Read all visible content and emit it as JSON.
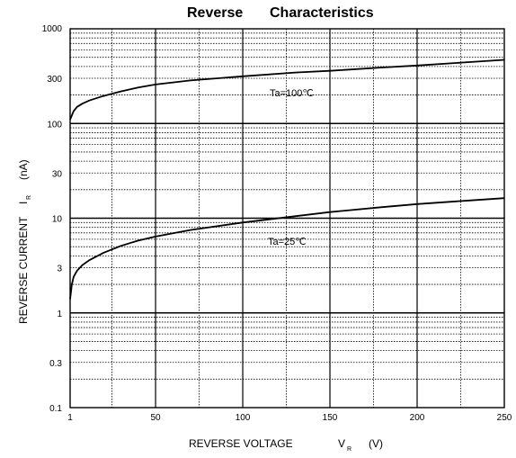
{
  "chart_data": {
    "type": "line",
    "title_part1": "Reverse",
    "title_part2": "Characteristics",
    "xlabel": "REVERSE VOLTAGE",
    "xlabel_symbol": "V",
    "xlabel_subscript": "R",
    "xlabel_unit": "(V)",
    "ylabel": "REVERSE CURRENT",
    "ylabel_symbol": "I",
    "ylabel_subscript": "R",
    "ylabel_unit": "(nA)",
    "xlim": [
      1,
      250
    ],
    "ylim": [
      0.1,
      1000
    ],
    "y_scale": "log",
    "grid": true,
    "x_ticks": [
      {
        "value": 1,
        "label": "1"
      },
      {
        "value": 50,
        "label": "50"
      },
      {
        "value": 100,
        "label": "100"
      },
      {
        "value": 150,
        "label": "150"
      },
      {
        "value": 200,
        "label": "200"
      },
      {
        "value": 250,
        "label": "250"
      }
    ],
    "y_ticks": [
      {
        "value": 0.1,
        "label": "0.1"
      },
      {
        "value": 0.3,
        "label": "0.3"
      },
      {
        "value": 1,
        "label": "1"
      },
      {
        "value": 3,
        "label": "3"
      },
      {
        "value": 10,
        "label": "10"
      },
      {
        "value": 30,
        "label": "30"
      },
      {
        "value": 100,
        "label": "100"
      },
      {
        "value": 300,
        "label": "300"
      },
      {
        "value": 1000,
        "label": "1000"
      }
    ],
    "series": [
      {
        "name": "Ta=100℃",
        "color": "#000000",
        "x": [
          1,
          3,
          5,
          8,
          12,
          20,
          30,
          40,
          50,
          70,
          100,
          130,
          150,
          180,
          200,
          230,
          250
        ],
        "y": [
          110,
          135,
          150,
          162,
          175,
          195,
          218,
          240,
          258,
          285,
          315,
          345,
          360,
          390,
          410,
          445,
          470
        ]
      },
      {
        "name": "Ta=25℃",
        "color": "#000000",
        "x": [
          1,
          2,
          3,
          5,
          8,
          12,
          20,
          30,
          40,
          50,
          70,
          100,
          130,
          150,
          180,
          200,
          230,
          250
        ],
        "y": [
          1.4,
          2.0,
          2.4,
          2.8,
          3.2,
          3.6,
          4.3,
          5.1,
          5.8,
          6.4,
          7.5,
          9.0,
          10.5,
          11.6,
          13.1,
          14.1,
          15.4,
          16.3
        ]
      }
    ]
  }
}
